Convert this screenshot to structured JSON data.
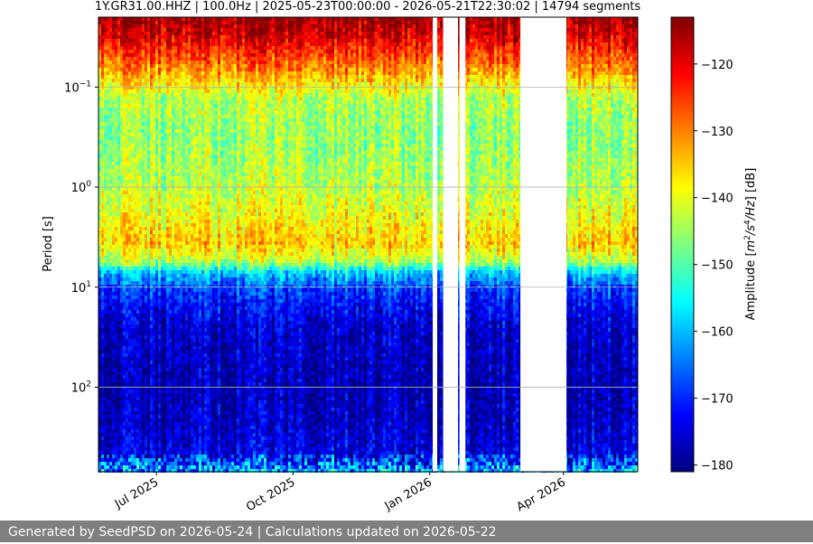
{
  "chart_data": {
    "type": "heatmap",
    "title": "1Y.GR31.00.HHZ | 100.0Hz | 2025-05-23T00:00:00 - 2026-05-21T22:30:02 | 14794 segments",
    "ylabel": "Period [s]",
    "yscale": "log",
    "y_inverted": true,
    "ylim": [
      0.02,
      700
    ],
    "y_ticks": [
      {
        "value": 0.1,
        "label": "10^-1"
      },
      {
        "value": 1,
        "label": "10^0"
      },
      {
        "value": 10,
        "label": "10^1"
      },
      {
        "value": 100,
        "label": "10^2"
      }
    ],
    "xlim": [
      "2025-05-23",
      "2026-05-21"
    ],
    "x_ticks": [
      {
        "value": "2025-07-01",
        "label": "Jul 2025"
      },
      {
        "value": "2025-10-01",
        "label": "Oct 2025"
      },
      {
        "value": "2026-01-01",
        "label": "Jan 2026"
      },
      {
        "value": "2026-04-01",
        "label": "Apr 2026"
      }
    ],
    "data_gaps": [
      {
        "start": "2026-01-03",
        "end": "2026-01-06"
      },
      {
        "start": "2026-01-10",
        "end": "2026-01-20"
      },
      {
        "start": "2026-01-21",
        "end": "2026-01-25"
      },
      {
        "start": "2026-03-03",
        "end": "2026-04-03"
      }
    ],
    "colorbar": {
      "label": "Amplitude [m^2/s^4/Hz] [dB]",
      "colormap": "jet",
      "range": [
        -181,
        -113
      ],
      "ticks": [
        -120,
        -130,
        -140,
        -150,
        -160,
        -170,
        -180
      ]
    },
    "grid": true
  },
  "footer": {
    "text": "Generated by SeedPSD on 2026-05-24 | Calculations updated on 2026-05-22"
  }
}
